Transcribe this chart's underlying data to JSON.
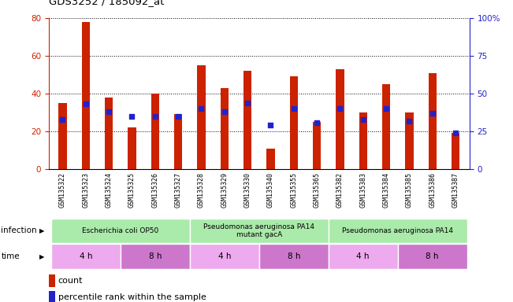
{
  "title": "GDS3252 / 185092_at",
  "samples": [
    "GSM135322",
    "GSM135323",
    "GSM135324",
    "GSM135325",
    "GSM135326",
    "GSM135327",
    "GSM135328",
    "GSM135329",
    "GSM135330",
    "GSM135340",
    "GSM135355",
    "GSM135365",
    "GSM135382",
    "GSM135383",
    "GSM135384",
    "GSM135385",
    "GSM135386",
    "GSM135387"
  ],
  "counts": [
    35,
    78,
    38,
    22,
    40,
    29,
    55,
    43,
    52,
    11,
    49,
    25,
    53,
    30,
    45,
    30,
    51,
    19
  ],
  "percentiles": [
    33,
    43,
    38,
    35,
    35,
    35,
    40,
    38,
    44,
    29,
    40,
    31,
    40,
    33,
    40,
    32,
    37,
    24
  ],
  "bar_color": "#cc2200",
  "dot_color": "#2222cc",
  "ylim_left": [
    0,
    80
  ],
  "ylim_right": [
    0,
    100
  ],
  "yticks_left": [
    0,
    20,
    40,
    60,
    80
  ],
  "yticks_right": [
    0,
    25,
    50,
    75,
    100
  ],
  "ytick_labels_right": [
    "0",
    "25",
    "50",
    "75",
    "100%"
  ],
  "infection_groups": [
    {
      "label": "Escherichia coli OP50",
      "start": 0,
      "end": 6,
      "color": "#aaeaaa"
    },
    {
      "label": "Pseudomonas aeruginosa PA14\nmutant gacA",
      "start": 6,
      "end": 12,
      "color": "#aaeaaa"
    },
    {
      "label": "Pseudomonas aeruginosa PA14",
      "start": 12,
      "end": 18,
      "color": "#aaeaaa"
    }
  ],
  "time_groups": [
    {
      "label": "4 h",
      "start": 0,
      "end": 3,
      "color": "#eeaaee"
    },
    {
      "label": "8 h",
      "start": 3,
      "end": 6,
      "color": "#cc77cc"
    },
    {
      "label": "4 h",
      "start": 6,
      "end": 9,
      "color": "#eeaaee"
    },
    {
      "label": "8 h",
      "start": 9,
      "end": 12,
      "color": "#cc77cc"
    },
    {
      "label": "4 h",
      "start": 12,
      "end": 15,
      "color": "#eeaaee"
    },
    {
      "label": "8 h",
      "start": 15,
      "end": 18,
      "color": "#cc77cc"
    }
  ],
  "infection_label": "infection",
  "time_label": "time",
  "legend_count_label": "count",
  "legend_pct_label": "percentile rank within the sample",
  "bar_width": 0.35,
  "background_color": "#ffffff",
  "tick_color_left": "#cc2200",
  "tick_color_right": "#2222cc"
}
